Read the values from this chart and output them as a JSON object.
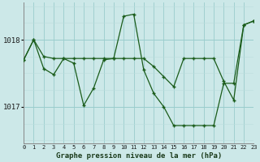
{
  "title": "Graphe pression niveau de la mer (hPa)",
  "bg_color": "#cce8e8",
  "plot_bg_color": "#cce8e8",
  "line_color": "#1a5c1a",
  "grid_color_major": "#99cccc",
  "grid_color_minor": "#bbdddd",
  "x_ticks": [
    0,
    1,
    2,
    3,
    4,
    5,
    6,
    7,
    8,
    9,
    10,
    11,
    12,
    13,
    14,
    15,
    16,
    17,
    18,
    19,
    20,
    21,
    22,
    23
  ],
  "xlim": [
    0,
    23
  ],
  "ylim": [
    1016.45,
    1018.55
  ],
  "yticks": [
    1017,
    1018
  ],
  "series1_x": [
    0,
    1,
    2,
    3,
    4,
    5,
    6,
    7,
    8,
    9,
    10,
    11,
    12,
    13,
    14,
    15,
    16,
    17,
    18,
    19,
    20,
    21,
    22,
    23
  ],
  "series1_y": [
    1017.7,
    1018.0,
    1017.75,
    1017.72,
    1017.72,
    1017.72,
    1017.72,
    1017.72,
    1017.72,
    1017.72,
    1018.35,
    1018.38,
    1017.55,
    1017.2,
    1017.0,
    1016.72,
    1016.72,
    1016.72,
    1016.72,
    1016.72,
    1017.35,
    1017.35,
    1018.22,
    1018.28
  ],
  "series2_x": [
    0,
    1,
    2,
    3,
    4,
    5,
    6,
    7,
    8,
    9,
    10,
    11,
    12,
    13,
    14,
    15,
    16,
    17,
    18,
    19,
    20,
    21,
    22,
    23
  ],
  "series2_y": [
    1017.7,
    1018.0,
    1017.57,
    1017.48,
    1017.72,
    1017.65,
    1017.02,
    1017.28,
    1017.7,
    1017.72,
    1017.72,
    1017.72,
    1017.72,
    1017.6,
    1017.45,
    1017.3,
    1017.72,
    1017.72,
    1017.72,
    1017.72,
    1017.38,
    1017.1,
    1018.22,
    1018.28
  ]
}
